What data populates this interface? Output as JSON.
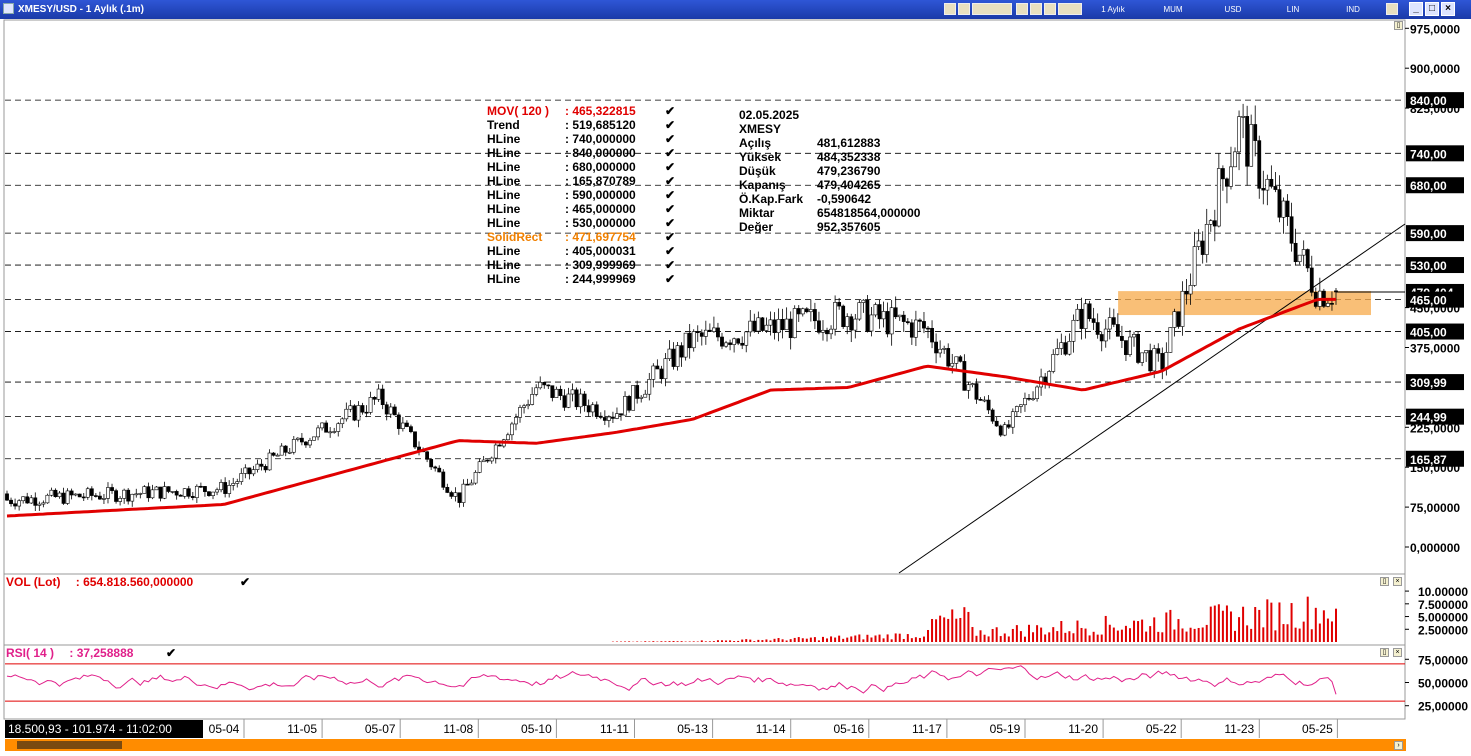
{
  "window": {
    "title": "XMESY/USD - 1 Aylık (.1m)",
    "toolbar": {
      "period": "1 Aylık",
      "style": "MUM",
      "currency": "USD",
      "scale": "LIN",
      "indicator": "IND"
    }
  },
  "colors": {
    "mov_line": "#e00000",
    "trend_line": "#000000",
    "solid_rect": "#f7a94a",
    "volume": "#e00000",
    "rsi": "#e0208a",
    "rsi_bounds": "#e00000",
    "status_bg": "#000000",
    "scrollbar": "#ff8c00"
  },
  "legend": [
    {
      "name": "MOV( 120 )",
      "value": ": 465,322815",
      "color": "#e00000"
    },
    {
      "name": "Trend",
      "value": ": 519,685120",
      "color": "#000000"
    },
    {
      "name": "HLine",
      "value": ": 740,000000",
      "color": "#000000"
    },
    {
      "name": "HLine",
      "value": ": 840,000000",
      "color": "#000000"
    },
    {
      "name": "HLine",
      "value": ": 680,000000",
      "color": "#000000"
    },
    {
      "name": "HLine",
      "value": ": 165,870789",
      "color": "#000000"
    },
    {
      "name": "HLine",
      "value": ": 590,000000",
      "color": "#000000"
    },
    {
      "name": "HLine",
      "value": ": 465,000000",
      "color": "#000000"
    },
    {
      "name": "HLine",
      "value": ": 530,000000",
      "color": "#000000"
    },
    {
      "name": "SolidRect",
      "value": ": 471,697754",
      "color": "#f08000"
    },
    {
      "name": "HLine",
      "value": ": 405,000031",
      "color": "#000000"
    },
    {
      "name": "HLine",
      "value": ": 309,999969",
      "color": "#000000"
    },
    {
      "name": "HLine",
      "value": ": 244,999969",
      "color": "#000000"
    }
  ],
  "ohlc_info": {
    "date": "02.05.2025",
    "symbol": "XMESY",
    "rows": [
      {
        "label": "Açılış",
        "value": "481,612883"
      },
      {
        "label": "Yüksek",
        "value": "484,352338"
      },
      {
        "label": "Düşük",
        "value": "479,236790"
      },
      {
        "label": "Kapanış",
        "value": "479,404265"
      },
      {
        "label": "Ö.Kap.Fark",
        "value": "-0,590642"
      },
      {
        "label": "Miktar",
        "value": "654818564,000000"
      },
      {
        "label": "Değer",
        "value": "952,357605"
      }
    ]
  },
  "price_axis": {
    "ticks": [
      {
        "value": 975,
        "label": "975,0000"
      },
      {
        "value": 900,
        "label": "900,0000"
      },
      {
        "value": 825,
        "label": "825,0000"
      },
      {
        "value": 450,
        "label": "450,0000"
      },
      {
        "value": 375,
        "label": "375,0000"
      },
      {
        "value": 225,
        "label": "225,0000"
      },
      {
        "value": 150,
        "label": "150,0000"
      },
      {
        "value": 75,
        "label": "75,00000"
      },
      {
        "value": 0,
        "label": "0,000000"
      }
    ],
    "hline_labels": [
      {
        "value": 840,
        "label": "840,00"
      },
      {
        "value": 740,
        "label": "740,00"
      },
      {
        "value": 680,
        "label": "680,00"
      },
      {
        "value": 590,
        "label": "590,00"
      },
      {
        "value": 530,
        "label": "530,00"
      },
      {
        "value": 479.4,
        "label": "479,404"
      },
      {
        "value": 465,
        "label": "465,00"
      },
      {
        "value": 405,
        "label": "405,00"
      },
      {
        "value": 309.99,
        "label": "309,99"
      },
      {
        "value": 244.99,
        "label": "244,99"
      },
      {
        "value": 165.87,
        "label": "165,87"
      }
    ]
  },
  "x_axis": {
    "labels": [
      "05-04",
      "11-05",
      "05-07",
      "11-08",
      "05-10",
      "11-11",
      "05-13",
      "11-14",
      "05-16",
      "11-17",
      "05-19",
      "11-20",
      "05-22",
      "11-23",
      "05-25"
    ]
  },
  "chart_data": {
    "type": "candlestick",
    "symbol": "XMESY",
    "ylim": [
      -25,
      1000
    ],
    "hlines": [
      840,
      740,
      680,
      590,
      530,
      465,
      405,
      309.999969,
      244.999969,
      165.870789
    ],
    "solid_rect": {
      "bottom": 436,
      "top": 481,
      "start": "11-20",
      "end": "05-25"
    },
    "trend_line": {
      "from": {
        "x": "05-19",
        "y": -50
      },
      "to": {
        "x": "05-25",
        "y": 600
      }
    },
    "mov_120_anchor": [
      [
        "05-04",
        80
      ],
      [
        "11-05",
        120
      ],
      [
        "05-07",
        160
      ],
      [
        "11-08",
        200
      ],
      [
        "05-10",
        195
      ],
      [
        "11-11",
        215
      ],
      [
        "05-13",
        240
      ],
      [
        "11-14",
        295
      ],
      [
        "05-16",
        300
      ],
      [
        "11-17",
        340
      ],
      [
        "05-19",
        320
      ],
      [
        "11-20",
        295
      ],
      [
        "05-22",
        330
      ],
      [
        "11-23",
        410
      ],
      [
        "05-25",
        465.32
      ]
    ],
    "price_anchor": [
      [
        "05-04",
        110
      ],
      [
        "11-05",
        200
      ],
      [
        "05-07",
        280
      ],
      [
        "11-08",
        90
      ],
      [
        "05-10",
        300
      ],
      [
        "11-11",
        250
      ],
      [
        "05-13",
        390
      ],
      [
        "11-14",
        410
      ],
      [
        "05-16",
        440
      ],
      [
        "11-17",
        410
      ],
      [
        "05-19",
        215
      ],
      [
        "11-20",
        440
      ],
      [
        "05-22",
        340
      ],
      [
        "11-23",
        790
      ],
      [
        "05-25",
        479.4
      ]
    ],
    "last_close": 479.404265,
    "volume": {
      "title": "VOL (Lot)",
      "value": ": 654.818.560,000000",
      "ticks": [
        {
          "value": 10,
          "label": "10.00000"
        },
        {
          "value": 7.5,
          "label": "7.500000"
        },
        {
          "value": 5,
          "label": "5.000000"
        },
        {
          "value": 2.5,
          "label": "2.500000"
        }
      ],
      "unit": "x 10^8",
      "last": 6.548
    },
    "rsi": {
      "title": "RSI( 14 )",
      "value": ": 37,258888",
      "period": 14,
      "ticks": [
        {
          "value": 75,
          "label": "75,00000"
        },
        {
          "value": 50,
          "label": "50,00000"
        },
        {
          "value": 25,
          "label": "25,00000"
        }
      ],
      "bounds": [
        70,
        30
      ],
      "last": 37.258888
    }
  },
  "status": {
    "text": "18.500,93 - 101.974 - 11:02:00"
  }
}
